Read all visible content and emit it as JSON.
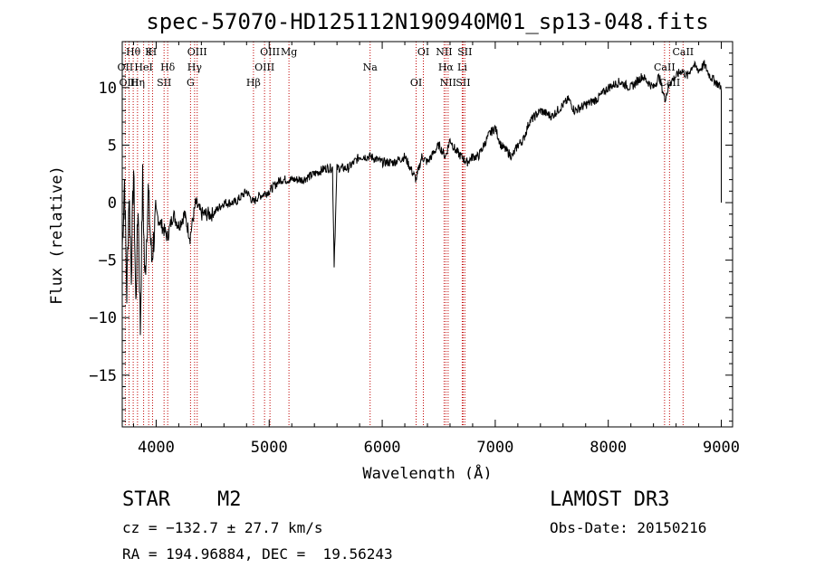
{
  "chart_data": {
    "type": "line",
    "title": "spec-57070-HD125112N190940M01_sp13-048.fits",
    "xlabel": "Wavelength (Å)",
    "ylabel": "Flux (relative)",
    "xlim": [
      3700,
      9100
    ],
    "ylim": [
      -19.5,
      14
    ],
    "x_ticks": [
      4000,
      5000,
      6000,
      7000,
      8000,
      9000
    ],
    "x_tick_labels": [
      "4000",
      "5000",
      "6000",
      "7000",
      "8000",
      "9000"
    ],
    "y_ticks": [
      -15,
      -10,
      -5,
      0,
      5,
      10
    ],
    "y_tick_labels": [
      "−15",
      "−10",
      "−5",
      "0",
      "5",
      "10"
    ],
    "series": [
      {
        "name": "spectrum",
        "x": [
          3700,
          3720,
          3740,
          3760,
          3780,
          3800,
          3820,
          3840,
          3860,
          3880,
          3900,
          3930,
          3960,
          4000,
          4050,
          4100,
          4150,
          4200,
          4250,
          4300,
          4350,
          4400,
          4500,
          4600,
          4700,
          4800,
          4860,
          4900,
          5000,
          5100,
          5200,
          5300,
          5400,
          5500,
          5560,
          5575,
          5600,
          5700,
          5800,
          5900,
          6000,
          6100,
          6200,
          6300,
          6350,
          6400,
          6500,
          6560,
          6600,
          6650,
          6700,
          6750,
          6800,
          6850,
          6900,
          6950,
          7000,
          7050,
          7100,
          7150,
          7200,
          7250,
          7300,
          7400,
          7500,
          7600,
          7650,
          7700,
          7800,
          7900,
          8000,
          8100,
          8200,
          8300,
          8400,
          8450,
          8500,
          8550,
          8600,
          8650,
          8700,
          8750,
          8800,
          8850,
          8900,
          8950,
          9000,
          9000
        ],
        "y": [
          -4,
          2,
          -8,
          1,
          -6,
          3,
          -9,
          0,
          -11,
          2,
          -7,
          1,
          -5,
          -1,
          -2,
          -3,
          -1,
          -2,
          -1,
          -3,
          0,
          -1,
          -1,
          0,
          0,
          1,
          0,
          0.5,
          1,
          2,
          2,
          2,
          2.5,
          3,
          3,
          -5.3,
          3,
          3,
          4,
          4,
          3.5,
          3.5,
          4,
          2,
          4,
          3.5,
          5,
          4,
          5.5,
          4.5,
          4,
          3.5,
          4,
          4,
          5,
          6,
          6.5,
          5,
          4.5,
          4,
          5,
          5.5,
          7,
          8,
          7.5,
          8.5,
          9,
          8,
          8.5,
          9,
          10,
          10.5,
          10,
          11,
          10,
          11,
          9,
          10.5,
          11,
          11.5,
          11,
          12,
          11.5,
          12,
          11,
          10.5,
          10,
          0
        ]
      }
    ],
    "lines": [
      {
        "label": "Hθ",
        "x": 3797
      },
      {
        "label": "OII",
        "x": 3727
      },
      {
        "label": "OIII",
        "x": 3760
      },
      {
        "label": "K",
        "x": 3934
      },
      {
        "label": "HeI",
        "x": 3889
      },
      {
        "label": "Hη",
        "x": 3835
      },
      {
        "label": "H",
        "x": 3968
      },
      {
        "label": "Hδ",
        "x": 4102
      },
      {
        "label": "SII",
        "x": 4070
      },
      {
        "label": "OIII",
        "x": 4363
      },
      {
        "label": "Hγ",
        "x": 4340
      },
      {
        "label": "G",
        "x": 4304
      },
      {
        "label": "OIII",
        "x": 5007
      },
      {
        "label": "OIII",
        "x": 4959
      },
      {
        "label": "Hβ",
        "x": 4861
      },
      {
        "label": "Mg",
        "x": 5175
      },
      {
        "label": "Na",
        "x": 5893
      },
      {
        "label": "OI",
        "x": 6300
      },
      {
        "label": "OI",
        "x": 6364
      },
      {
        "label": "Hα",
        "x": 6563
      },
      {
        "label": "SII",
        "x": 6716
      },
      {
        "label": "NII",
        "x": 6548
      },
      {
        "label": "Li",
        "x": 6708
      },
      {
        "label": "NII",
        "x": 6583
      },
      {
        "label": "SII",
        "x": 6731
      },
      {
        "label": "CaII",
        "x": 8498
      },
      {
        "label": "CaII",
        "x": 8542
      },
      {
        "label": "CaII",
        "x": 8662
      }
    ]
  },
  "info": {
    "class_label": "STAR",
    "subclass": "M2",
    "cz": "cz = −132.7 ± 27.7 km/s",
    "coords": "RA = 194.96884, DEC =  19.56243",
    "survey": "LAMOST DR3",
    "obs_date": "Obs-Date: 20150216"
  }
}
